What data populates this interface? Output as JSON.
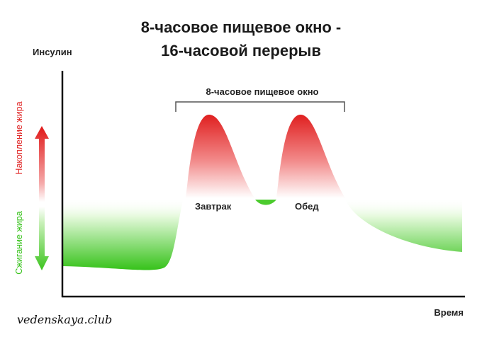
{
  "title": {
    "line1": "8-часовое пищевое окно -",
    "line2": "16-часовой перерыв"
  },
  "axes": {
    "y_label": "Инсулин",
    "x_label": "Время"
  },
  "eating_window_label": "8-часовое пищевое окно",
  "meals": {
    "breakfast": "Завтрак",
    "lunch": "Обед"
  },
  "side_labels": {
    "fat_storage": "Накопление жира",
    "fat_burning": "Сжигание жира"
  },
  "watermark": "vedenskaya.club",
  "colors": {
    "storage": "#e02525",
    "burning": "#36c21a",
    "axis": "#111111",
    "text": "#222222"
  }
}
